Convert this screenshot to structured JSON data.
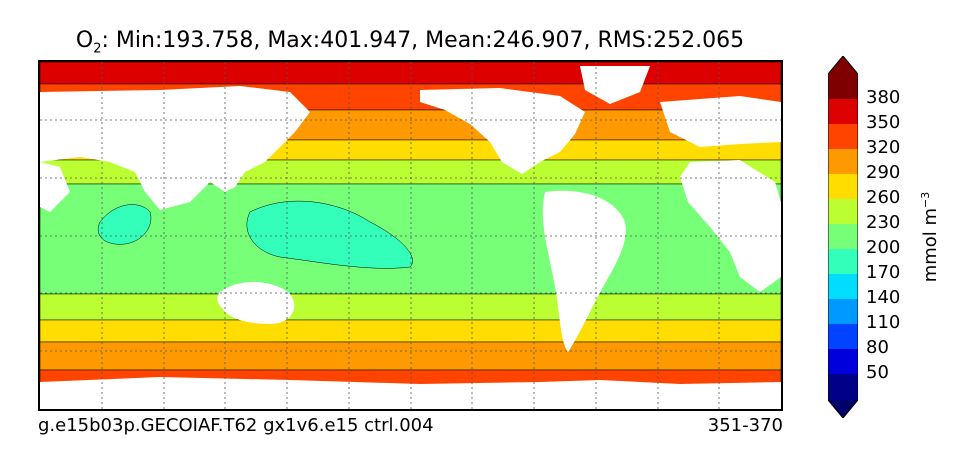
{
  "title": {
    "variable": "O",
    "variable_subscript": "2",
    "stats": ": Min:193.758, Max:401.947, Mean:246.907, RMS:252.065"
  },
  "footer": {
    "case_name": "g.e15b03p.GECOIAF.T62 gx1v6.e15 ctrl.004",
    "years": "351-370"
  },
  "colorbar": {
    "units_prefix": "mmol m",
    "units_exponent": "−3",
    "tick_labels": [
      "380",
      "350",
      "320",
      "290",
      "260",
      "230",
      "200",
      "170",
      "140",
      "110",
      "80",
      "50"
    ],
    "colors": [
      "#7f0000",
      "#dd0000",
      "#ff4400",
      "#ff9900",
      "#ffdd00",
      "#bbff33",
      "#77ff77",
      "#33ffbb",
      "#00ddff",
      "#0099ff",
      "#0044ff",
      "#0000dd",
      "#000088",
      "#00006a"
    ]
  },
  "chart_data": {
    "type": "heatmap",
    "title": "O2: Min:193.758, Max:401.947, Mean:246.907, RMS:252.065",
    "variable": "O2",
    "stats": {
      "min": 193.758,
      "max": 401.947,
      "mean": 246.907,
      "rms": 252.065
    },
    "units": "mmol m-3",
    "contour_levels": [
      50,
      80,
      110,
      140,
      170,
      200,
      230,
      260,
      290,
      320,
      350,
      380
    ],
    "colorbar_extend": "both",
    "grid": true,
    "projection": "global lat-lon"
  }
}
